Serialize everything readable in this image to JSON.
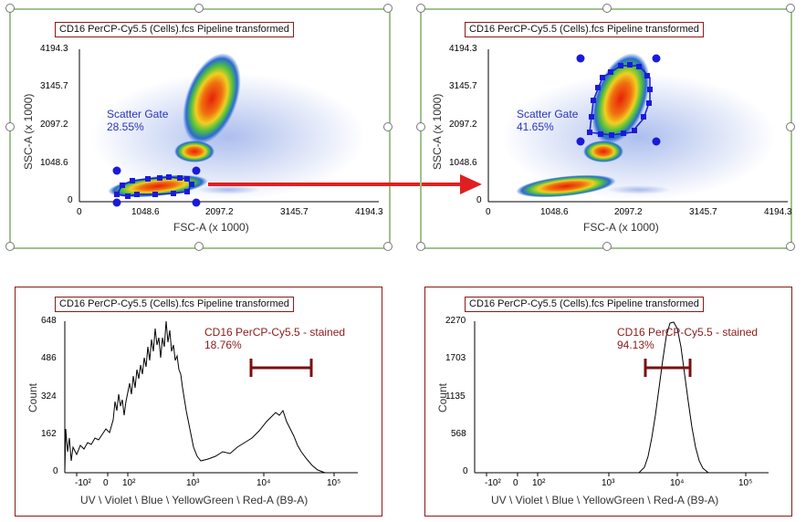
{
  "plots": [
    {
      "id": "scatter-left",
      "title": "CD16 PerCP-Cy5.5 (Cells).fcs Pipeline transformed",
      "x_axis_label": "FSC-A (x 1000)",
      "y_axis_label": "SSC-A (x 1000)",
      "x_ticks": [
        "0",
        "1048.6",
        "2097.2",
        "3145.7",
        "4194.3"
      ],
      "y_ticks": [
        "0",
        "1048.6",
        "2097.2",
        "3145.7",
        "4194.3"
      ],
      "gate_name": "Scatter Gate",
      "gate_percent": "28.55%"
    },
    {
      "id": "scatter-right",
      "title": "CD16 PerCP-Cy5.5 (Cells).fcs Pipeline transformed",
      "x_axis_label": "FSC-A (x 1000)",
      "y_axis_label": "SSC-A (x 1000)",
      "x_ticks": [
        "0",
        "1048.6",
        "2097.2",
        "3145.7",
        "4194.3"
      ],
      "y_ticks": [
        "0",
        "1048.6",
        "2097.2",
        "3145.7",
        "4194.3"
      ],
      "gate_name": "Scatter Gate",
      "gate_percent": "41.65%"
    },
    {
      "id": "hist-left",
      "title": "CD16 PerCP-Cy5.5 (Cells).fcs Pipeline transformed",
      "x_axis_label": "UV \\ Violet \\ Blue \\ YellowGreen \\ Red-A (B9-A)",
      "y_axis_label": "Count",
      "x_ticks": [
        "-10²",
        "0",
        "10²",
        "10³",
        "10⁴",
        "10⁵"
      ],
      "y_ticks": [
        "0",
        "162",
        "324",
        "486",
        "648"
      ],
      "gate_name": "CD16 PerCP-Cy5.5 - stained",
      "gate_percent": "18.76%"
    },
    {
      "id": "hist-right",
      "title": "CD16 PerCP-Cy5.5 (Cells).fcs Pipeline transformed",
      "x_axis_label": "UV \\ Violet \\ Blue \\ YellowGreen \\ Red-A (B9-A)",
      "y_axis_label": "Count",
      "x_ticks": [
        "-10²",
        "0",
        "10²",
        "10³",
        "10⁴",
        "10⁵"
      ],
      "y_ticks": [
        "0",
        "568",
        "1135",
        "1703",
        "2270"
      ],
      "gate_name": "CD16 PerCP-Cy5.5 - stained",
      "gate_percent": "94.13%"
    }
  ],
  "colors": {
    "gate_text": "#2a35b8",
    "gate_handle": "#1a1adb",
    "range_gate": "#7a1010",
    "arrow": "#e02020",
    "scatter_border": "#9ec38c",
    "hist_border": "#8b1a1a"
  }
}
